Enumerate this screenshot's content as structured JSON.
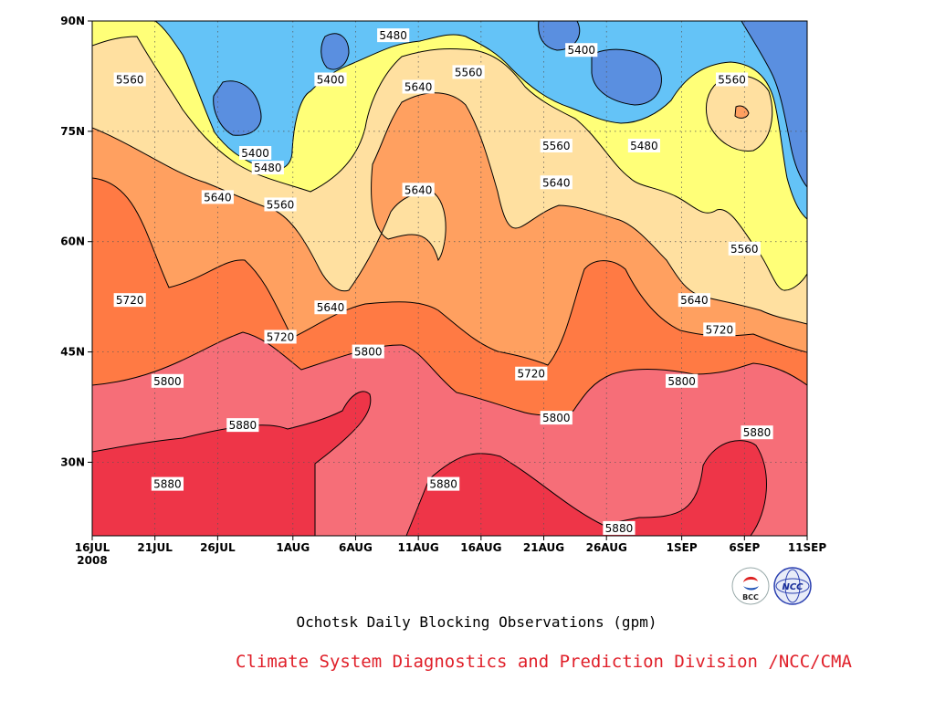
{
  "caption": {
    "title": "Ochotsk Daily Blocking Observations (gpm)",
    "credit": "Climate System Diagnostics and Prediction Division /NCC/CMA"
  },
  "logos": {
    "bcc": "BCC",
    "ncc": "NCC"
  },
  "chart_data": {
    "type": "heatmap",
    "subtype": "filled-contour",
    "units": "gpm",
    "x_axis": {
      "ticks": [
        "16JUL",
        "21JUL",
        "26JUL",
        "1AUG",
        "6AUG",
        "11AUG",
        "16AUG",
        "21AUG",
        "26AUG",
        "1SEP",
        "6SEP",
        "11SEP"
      ],
      "year_label": "2008",
      "range": [
        "2008-07-16",
        "2008-09-11"
      ]
    },
    "y_axis": {
      "ticks": [
        "30N",
        "45N",
        "60N",
        "75N",
        "90N"
      ],
      "tick_values": [
        30,
        45,
        60,
        75,
        90
      ],
      "range": [
        20,
        90
      ]
    },
    "grid": "dotted",
    "levels": [
      {
        "range": "<5400",
        "color": "#5a8fe0"
      },
      {
        "range": "5400-5480",
        "color": "#64c3f7"
      },
      {
        "range": "5480-5560",
        "color": "#ffff78"
      },
      {
        "range": "5560-5640",
        "color": "#ffe0a0"
      },
      {
        "range": "5640-5720",
        "color": "#ffa060"
      },
      {
        "range": "5720-5800",
        "color": "#ff7a44"
      },
      {
        "range": "5800-5880",
        "color": "#f66e78"
      },
      {
        "range": ">5880",
        "color": "#ee3548"
      }
    ],
    "contour_labels": [
      {
        "text": "5480",
        "date": "2008-08-09",
        "lat": 88
      },
      {
        "text": "5400",
        "date": "2008-08-24",
        "lat": 86
      },
      {
        "text": "5560",
        "date": "2008-07-19",
        "lat": 82
      },
      {
        "text": "5400",
        "date": "2008-08-04",
        "lat": 82
      },
      {
        "text": "5560",
        "date": "2008-08-15",
        "lat": 83
      },
      {
        "text": "5560",
        "date": "2008-09-05",
        "lat": 82
      },
      {
        "text": "5640",
        "date": "2008-08-11",
        "lat": 81
      },
      {
        "text": "5400",
        "date": "2008-07-29",
        "lat": 72
      },
      {
        "text": "5480",
        "date": "2008-07-30",
        "lat": 70
      },
      {
        "text": "5560",
        "date": "2008-08-22",
        "lat": 73
      },
      {
        "text": "5480",
        "date": "2008-08-29",
        "lat": 73
      },
      {
        "text": "5640",
        "date": "2008-07-26",
        "lat": 66
      },
      {
        "text": "5560",
        "date": "2008-07-31",
        "lat": 65
      },
      {
        "text": "5640",
        "date": "2008-08-11",
        "lat": 67
      },
      {
        "text": "5640",
        "date": "2008-08-22",
        "lat": 68
      },
      {
        "text": "5560",
        "date": "2008-09-06",
        "lat": 59
      },
      {
        "text": "5720",
        "date": "2008-07-19",
        "lat": 52
      },
      {
        "text": "5640",
        "date": "2008-08-04",
        "lat": 51
      },
      {
        "text": "5640",
        "date": "2008-09-02",
        "lat": 52
      },
      {
        "text": "5720",
        "date": "2008-07-31",
        "lat": 47
      },
      {
        "text": "5720",
        "date": "2008-09-04",
        "lat": 48
      },
      {
        "text": "5800",
        "date": "2008-08-07",
        "lat": 45
      },
      {
        "text": "5720",
        "date": "2008-08-20",
        "lat": 42
      },
      {
        "text": "5800",
        "date": "2008-07-22",
        "lat": 41
      },
      {
        "text": "5800",
        "date": "2008-09-01",
        "lat": 41
      },
      {
        "text": "5880",
        "date": "2008-07-28",
        "lat": 35
      },
      {
        "text": "5800",
        "date": "2008-08-22",
        "lat": 36
      },
      {
        "text": "5880",
        "date": "2008-09-07",
        "lat": 34
      },
      {
        "text": "5880",
        "date": "2008-07-22",
        "lat": 27
      },
      {
        "text": "5880",
        "date": "2008-08-13",
        "lat": 27
      },
      {
        "text": "5880",
        "date": "2008-08-27",
        "lat": 21
      }
    ]
  }
}
